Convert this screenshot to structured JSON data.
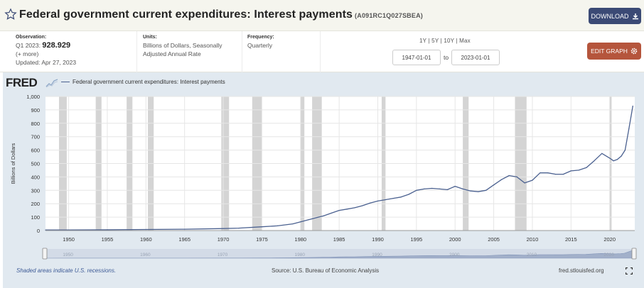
{
  "header": {
    "title": "Federal government current expenditures: Interest payments",
    "series_id": "(A091RC1Q027SBEA)",
    "download_label": "DOWNLOAD"
  },
  "meta": {
    "observation_label": "Observation:",
    "observation_period": "Q1 2023:",
    "observation_value": "928.929",
    "more": "(+ more)",
    "updated": "Updated: Apr 27, 2023",
    "units_label": "Units:",
    "units_value": "Billions of Dollars, Seasonally Adjusted Annual Rate",
    "frequency_label": "Frequency:",
    "frequency_value": "Quarterly",
    "ranges": "1Y | 5Y | 10Y | Max",
    "start_date": "1947-01-01",
    "to_label": "to",
    "end_date": "2023-01-01",
    "edit_label": "EDIT GRAPH"
  },
  "brand": {
    "fred": "FRED"
  },
  "footer": {
    "note": "Shaded areas indicate U.S. recessions.",
    "source": "Source: U.S. Bureau of Economic Analysis",
    "site": "fred.stlouisfed.org"
  },
  "colors": {
    "line": "#4b6190",
    "recession": "#d4d4d4",
    "download_button": "#3b4a75",
    "edit_button": "#b5553c",
    "chart_background": "#e1e9f0"
  },
  "icons": [
    "star-icon",
    "download-icon",
    "gear-icon",
    "fred-logo-icon",
    "fullscreen-icon"
  ],
  "chart_data": {
    "type": "line",
    "title": "",
    "xlabel": "",
    "ylabel": "Billions of Dollars",
    "xlim": [
      1947.0,
      2023.25
    ],
    "ylim": [
      0,
      1000
    ],
    "yticks": [
      0,
      100,
      200,
      300,
      400,
      500,
      600,
      700,
      800,
      900,
      1000
    ],
    "ytick_labels": [
      "0",
      "100",
      "200",
      "300",
      "400",
      "500",
      "600",
      "700",
      "800",
      "900",
      "1,000"
    ],
    "xticks": [
      1950,
      1955,
      1960,
      1965,
      1970,
      1975,
      1980,
      1985,
      1990,
      1995,
      2000,
      2005,
      2010,
      2015,
      2020
    ],
    "navigator_ticks": [
      1950,
      1960,
      1970,
      1980,
      1990,
      2000,
      2010,
      2020
    ],
    "grid": true,
    "legend_position": "top-left",
    "recessions": [
      [
        1948.75,
        1949.75
      ],
      [
        1953.5,
        1954.25
      ],
      [
        1957.5,
        1958.25
      ],
      [
        1960.25,
        1961.0
      ],
      [
        1969.75,
        1970.75
      ],
      [
        1973.75,
        1975.0
      ],
      [
        1980.0,
        1980.5
      ],
      [
        1981.5,
        1982.75
      ],
      [
        1990.5,
        1991.0
      ],
      [
        2001.0,
        2001.75
      ],
      [
        2007.75,
        2009.25
      ],
      [
        2020.0,
        2020.25
      ]
    ],
    "series": [
      {
        "name": "Federal government current expenditures: Interest payments",
        "x": [
          1947,
          1950,
          1955,
          1960,
          1965,
          1970,
          1972,
          1975,
          1977,
          1979,
          1980,
          1981,
          1982,
          1983,
          1984,
          1985,
          1986,
          1987,
          1988,
          1989,
          1990,
          1991,
          1992,
          1993,
          1994,
          1995,
          1996,
          1997,
          1998,
          1999,
          2000,
          2001,
          2002,
          2003,
          2004,
          2005,
          2006,
          2007,
          2008,
          2009,
          2010,
          2011,
          2012,
          2013,
          2014,
          2015,
          2016,
          2017,
          2018,
          2019,
          2020,
          2020.5,
          2021,
          2021.5,
          2022,
          2022.5,
          2023
        ],
        "y": [
          4,
          5,
          6,
          8,
          10,
          15,
          18,
          28,
          35,
          50,
          65,
          80,
          95,
          110,
          130,
          150,
          160,
          170,
          185,
          205,
          220,
          230,
          240,
          250,
          270,
          300,
          310,
          315,
          310,
          305,
          330,
          310,
          295,
          290,
          300,
          340,
          380,
          410,
          400,
          355,
          375,
          430,
          430,
          420,
          420,
          445,
          450,
          470,
          520,
          575,
          540,
          520,
          530,
          555,
          600,
          760,
          929
        ]
      }
    ]
  }
}
